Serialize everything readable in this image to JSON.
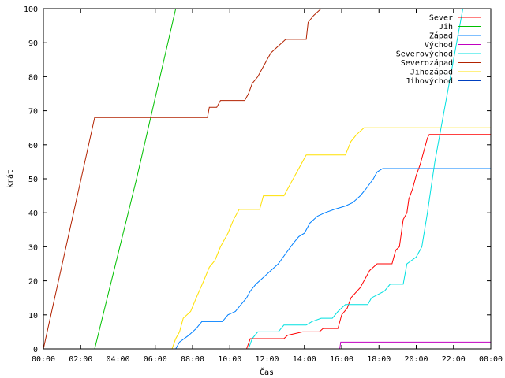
{
  "chart_data": {
    "type": "line",
    "xlabel": "Čas",
    "ylabel": "krát",
    "xlim": [
      0,
      24
    ],
    "ylim": [
      0,
      100
    ],
    "x_unit": "hours",
    "x_ticks": [
      {
        "value": 0,
        "label": "00:00"
      },
      {
        "value": 2,
        "label": "02:00"
      },
      {
        "value": 4,
        "label": "04:00"
      },
      {
        "value": 6,
        "label": "06:00"
      },
      {
        "value": 8,
        "label": "08:00"
      },
      {
        "value": 10,
        "label": "10:00"
      },
      {
        "value": 12,
        "label": "12:00"
      },
      {
        "value": 14,
        "label": "14:00"
      },
      {
        "value": 16,
        "label": "16:00"
      },
      {
        "value": 18,
        "label": "18:00"
      },
      {
        "value": 20,
        "label": "20:00"
      },
      {
        "value": 22,
        "label": "22:00"
      },
      {
        "value": 24,
        "label": "00:00"
      }
    ],
    "y_ticks": [
      0,
      10,
      20,
      30,
      40,
      50,
      60,
      70,
      80,
      90,
      100
    ],
    "grid": false,
    "legend_position": "top-right",
    "series": [
      {
        "name": "Sever",
        "color": "#ff0000",
        "points": [
          [
            10.9,
            0
          ],
          [
            11.1,
            3
          ],
          [
            12.9,
            3
          ],
          [
            13.1,
            4
          ],
          [
            13.9,
            5
          ],
          [
            14.8,
            5
          ],
          [
            15.0,
            6
          ],
          [
            15.8,
            6
          ],
          [
            16.0,
            10
          ],
          [
            16.3,
            12
          ],
          [
            16.5,
            15
          ],
          [
            17.0,
            18
          ],
          [
            17.3,
            21
          ],
          [
            17.5,
            23
          ],
          [
            17.9,
            25
          ],
          [
            18.7,
            25
          ],
          [
            18.9,
            29
          ],
          [
            19.1,
            30
          ],
          [
            19.3,
            38
          ],
          [
            19.5,
            40
          ],
          [
            19.6,
            44
          ],
          [
            19.8,
            47
          ],
          [
            20.0,
            51
          ],
          [
            20.2,
            54
          ],
          [
            20.4,
            58
          ],
          [
            20.6,
            62
          ],
          [
            20.7,
            63
          ],
          [
            24,
            63
          ]
        ]
      },
      {
        "name": "Jih",
        "color": "#00c000",
        "points": [
          [
            2.75,
            0
          ],
          [
            5.0,
            50
          ],
          [
            7.1,
            100
          ]
        ]
      },
      {
        "name": "Západ",
        "color": "#0080ff",
        "points": [
          [
            7.1,
            0
          ],
          [
            7.3,
            2
          ],
          [
            7.8,
            4
          ],
          [
            8.2,
            6
          ],
          [
            8.5,
            8
          ],
          [
            9.6,
            8
          ],
          [
            9.9,
            10
          ],
          [
            10.3,
            11
          ],
          [
            10.6,
            13
          ],
          [
            10.9,
            15
          ],
          [
            11.1,
            17
          ],
          [
            11.4,
            19
          ],
          [
            11.8,
            21
          ],
          [
            12.2,
            23
          ],
          [
            12.6,
            25
          ],
          [
            13.0,
            28
          ],
          [
            13.4,
            31
          ],
          [
            13.7,
            33
          ],
          [
            14.0,
            34
          ],
          [
            14.3,
            37
          ],
          [
            14.7,
            39
          ],
          [
            15.1,
            40
          ],
          [
            15.6,
            41
          ],
          [
            16.2,
            42
          ],
          [
            16.6,
            43
          ],
          [
            17.0,
            45
          ],
          [
            17.3,
            47
          ],
          [
            17.7,
            50
          ],
          [
            17.9,
            52
          ],
          [
            18.2,
            53
          ],
          [
            24,
            53
          ]
        ]
      },
      {
        "name": "Východ",
        "color": "#c000c0",
        "points": [
          [
            15.9,
            0
          ],
          [
            15.95,
            2
          ],
          [
            24,
            2
          ]
        ]
      },
      {
        "name": "Severovýchod",
        "color": "#00e0e0",
        "points": [
          [
            11.0,
            0
          ],
          [
            11.2,
            3
          ],
          [
            11.5,
            5
          ],
          [
            12.6,
            5
          ],
          [
            12.9,
            7
          ],
          [
            14.1,
            7
          ],
          [
            14.4,
            8
          ],
          [
            14.9,
            9
          ],
          [
            15.5,
            9
          ],
          [
            15.8,
            11
          ],
          [
            16.2,
            13
          ],
          [
            17.4,
            13
          ],
          [
            17.6,
            15
          ],
          [
            18.3,
            17
          ],
          [
            18.6,
            19
          ],
          [
            19.3,
            19
          ],
          [
            19.5,
            25
          ],
          [
            20.0,
            27
          ],
          [
            20.3,
            30
          ],
          [
            20.6,
            40
          ],
          [
            21.0,
            55
          ],
          [
            21.5,
            70
          ],
          [
            22.0,
            85
          ],
          [
            22.5,
            100
          ]
        ]
      },
      {
        "name": "Severozápad",
        "color": "#b22200",
        "points": [
          [
            0,
            0
          ],
          [
            2.75,
            68
          ],
          [
            8.8,
            68
          ],
          [
            8.9,
            71
          ],
          [
            9.3,
            71
          ],
          [
            9.5,
            73
          ],
          [
            10.8,
            73
          ],
          [
            11.0,
            75
          ],
          [
            11.2,
            78
          ],
          [
            11.5,
            80
          ],
          [
            11.7,
            82
          ],
          [
            12.0,
            85
          ],
          [
            12.2,
            87
          ],
          [
            12.6,
            89
          ],
          [
            13.0,
            91
          ],
          [
            14.1,
            91
          ],
          [
            14.2,
            96
          ],
          [
            14.5,
            98
          ],
          [
            14.9,
            100
          ]
        ]
      },
      {
        "name": "Jihozápad",
        "color": "#ffe000",
        "points": [
          [
            6.9,
            0
          ],
          [
            7.1,
            3
          ],
          [
            7.3,
            5
          ],
          [
            7.5,
            9
          ],
          [
            7.9,
            11
          ],
          [
            8.2,
            15
          ],
          [
            8.6,
            20
          ],
          [
            8.9,
            24
          ],
          [
            9.2,
            26
          ],
          [
            9.5,
            30
          ],
          [
            9.9,
            34
          ],
          [
            10.2,
            38
          ],
          [
            10.5,
            41
          ],
          [
            11.6,
            41
          ],
          [
            11.8,
            45
          ],
          [
            12.9,
            45
          ],
          [
            13.1,
            47
          ],
          [
            13.5,
            51
          ],
          [
            13.8,
            54
          ],
          [
            14.1,
            57
          ],
          [
            16.2,
            57
          ],
          [
            16.5,
            61
          ],
          [
            16.8,
            63
          ],
          [
            17.2,
            65
          ],
          [
            24,
            65
          ]
        ]
      },
      {
        "name": "Jihovýchod",
        "color": "#0040c0",
        "points": []
      }
    ]
  }
}
